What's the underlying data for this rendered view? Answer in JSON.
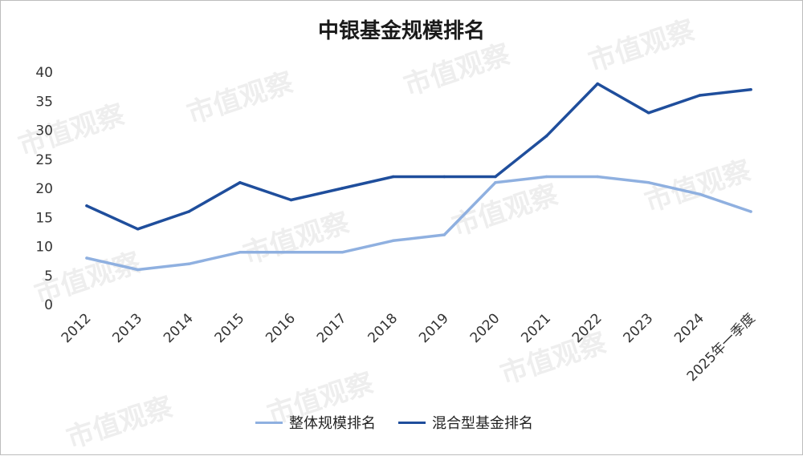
{
  "watermark": "市值观察",
  "chart_data": {
    "type": "line",
    "title": "中银基金规模排名",
    "categories": [
      "2012",
      "2013",
      "2014",
      "2015",
      "2016",
      "2017",
      "2018",
      "2019",
      "2020",
      "2021",
      "2022",
      "2023",
      "2024",
      "2025年一季度"
    ],
    "series": [
      {
        "name": "整体规模排名",
        "color": "#8fb0e0",
        "values": [
          8,
          6,
          7,
          9,
          9,
          9,
          11,
          12,
          21,
          22,
          22,
          21,
          19,
          16
        ]
      },
      {
        "name": "混合型基金排名",
        "color": "#1f4e9c",
        "values": [
          17,
          13,
          16,
          21,
          18,
          20,
          22,
          22,
          22,
          29,
          38,
          33,
          36,
          37
        ]
      }
    ],
    "ylim": [
      0,
      40
    ],
    "yticks": [
      0,
      5,
      10,
      15,
      20,
      25,
      30,
      35,
      40
    ],
    "grid": false,
    "legend": "bottom"
  }
}
